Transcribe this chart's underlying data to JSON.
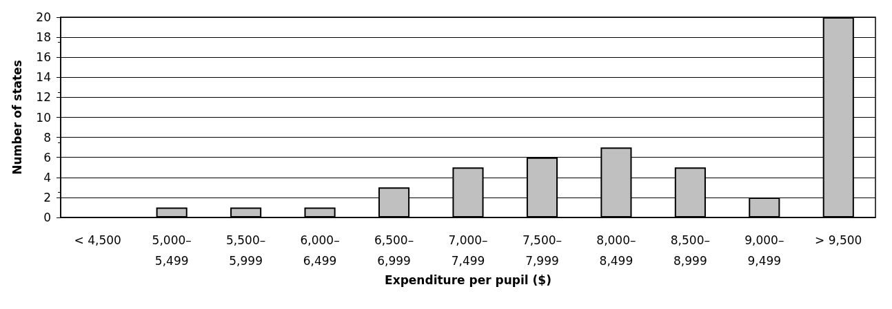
{
  "chart_data": {
    "type": "bar",
    "xlabel": "Expenditure per pupil ($)",
    "ylabel": "Number of states",
    "categories": [
      "< 4,500",
      "5,000–\n5,499",
      "5,500–\n5,999",
      "6,000–\n6,499",
      "6,500–\n6,999",
      "7,000–\n7,499",
      "7,500–\n7,999",
      "8,000–\n8,499",
      "8,500–\n8,999",
      "9,000–\n9,499",
      "> 9,500"
    ],
    "values": [
      0,
      1,
      1,
      1,
      3,
      5,
      6,
      7,
      5,
      2,
      20
    ],
    "color": "#c0c0c0",
    "ylim": [
      0,
      20
    ],
    "yticks": [
      0,
      2,
      4,
      6,
      8,
      10,
      12,
      14,
      16,
      18,
      20
    ],
    "grid": "y"
  }
}
